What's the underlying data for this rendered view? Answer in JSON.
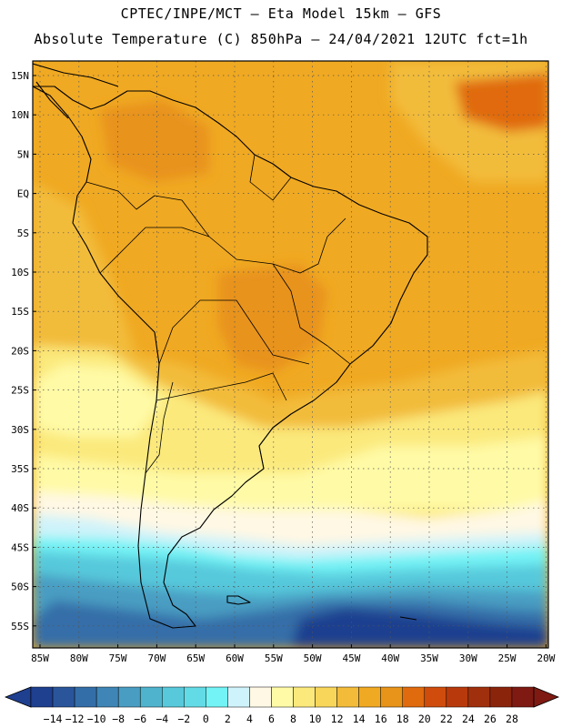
{
  "title": {
    "line1": "CPTEC/INPE/MCT –  Eta Model 15km – GFS",
    "line2": "Absolute Temperature (C) 850hPa – 24/04/2021 12UTC fct=1h"
  },
  "lat_labels": [
    "15N",
    "10N",
    "5N",
    "EQ",
    "5S",
    "10S",
    "15S",
    "20S",
    "25S",
    "30S",
    "35S",
    "40S",
    "45S",
    "50S",
    "55S"
  ],
  "lon_labels": [
    "85W",
    "80W",
    "75W",
    "70W",
    "65W",
    "60W",
    "55W",
    "50W",
    "45W",
    "40W",
    "35W",
    "30W",
    "25W",
    "20W"
  ],
  "colorbar": {
    "colors": [
      "#1f3f8f",
      "#2a559b",
      "#346ea8",
      "#3f86b6",
      "#4a9dc2",
      "#4fb3cd",
      "#57c9db",
      "#63dbe6",
      "#73f3f5",
      "#cff3fa",
      "#fff8e4",
      "#fffaa6",
      "#fbe97c",
      "#f8d65a",
      "#f2bc3a",
      "#f0a922",
      "#e8931a",
      "#e06a0e",
      "#cf4c0d",
      "#b83a0c",
      "#a0300d",
      "#8a250c",
      "#7e1a12"
    ],
    "labels": [
      "-14",
      "-12",
      "-10",
      "-8",
      "-6",
      "-4",
      "-2",
      "0",
      "2",
      "4",
      "6",
      "8",
      "10",
      "12",
      "14",
      "16",
      "18",
      "20",
      "22",
      "24",
      "26",
      "28"
    ]
  },
  "map_colors": {
    "very_dark_blue": "#1f3f8f",
    "dark_blue": "#346ea8",
    "blue": "#4a9dc2",
    "teal": "#57c9db",
    "cyan": "#73f3f5",
    "pale_cyan": "#cff3fa",
    "cream": "#fff8e4",
    "light_yellow": "#fffaa6",
    "yellow": "#fbe97c",
    "gold": "#f2bc3a",
    "orange": "#f0a922",
    "dark_orange": "#e8931a",
    "red_orange": "#e06a0e"
  }
}
